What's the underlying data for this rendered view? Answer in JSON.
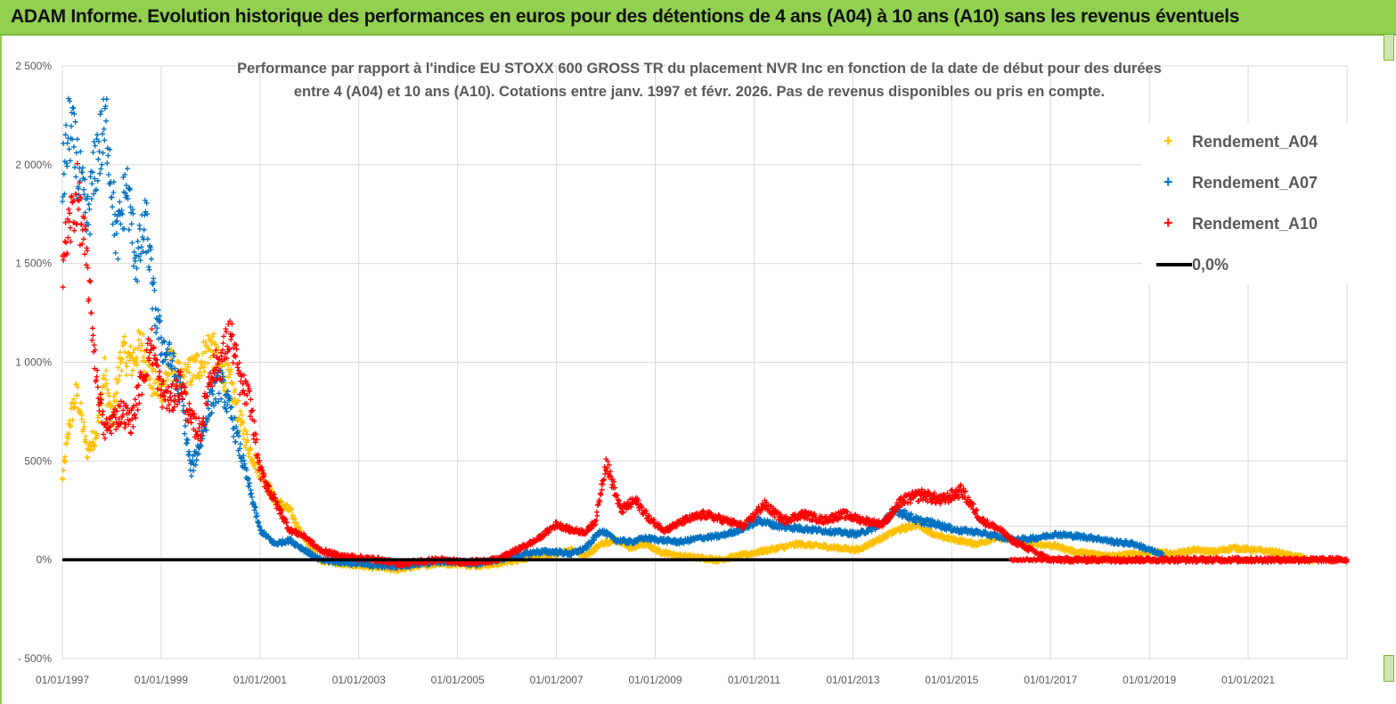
{
  "banner": {
    "title": "ADAM Informe. Evolution historique des performances en euros pour des détentions de 4 ans (A04) à 10 ans (A10) sans les revenus éventuels"
  },
  "chart_data": {
    "type": "scatter",
    "title_line1": "Performance par rapport à l'indice EU STOXX 600 GROSS TR  du placement NVR Inc en fonction de la date de début pour des durées",
    "title_line2": "entre 4 (A04) et 10 ans (A10).  Cotations entre janv. 1997 et févr. 2026.  Pas de revenus disponibles ou pris en compte.",
    "xlabel": "",
    "ylabel": "",
    "x_range": [
      1997.0,
      2023.0
    ],
    "ylim": [
      -500,
      2500
    ],
    "y_ticks": [
      -500,
      0,
      500,
      1000,
      1500,
      2000,
      2500
    ],
    "y_tick_labels": [
      "- 500%",
      "0%",
      "500%",
      "1 000%",
      "1 500%",
      "2 000%",
      "2 500%"
    ],
    "x_ticks": [
      1997,
      1999,
      2001,
      2003,
      2005,
      2007,
      2009,
      2011,
      2013,
      2015,
      2017,
      2019,
      2021
    ],
    "x_tick_labels": [
      "01/01/1997",
      "01/01/1999",
      "01/01/2001",
      "01/01/2003",
      "01/01/2005",
      "01/01/2007",
      "01/01/2009",
      "01/01/2011",
      "01/01/2013",
      "01/01/2015",
      "01/01/2017",
      "01/01/2019",
      "01/01/2021"
    ],
    "legend_position": "top-right",
    "series": [
      {
        "name": "Rendement_A04",
        "color": "#ffc000",
        "end": 2022.3,
        "x": [
          1997.0,
          1997.15,
          1997.3,
          1997.5,
          1997.7,
          1997.85,
          1998.0,
          1998.2,
          1998.4,
          1998.6,
          1998.8,
          1999.0,
          1999.2,
          1999.4,
          1999.6,
          1999.8,
          2000.0,
          2000.2,
          2000.4,
          2000.6,
          2000.8,
          2001.0,
          2001.3,
          2001.6,
          2001.9,
          2002.2,
          2002.6,
          2003.0,
          2003.4,
          2003.8,
          2004.2,
          2004.6,
          2005.0,
          2005.4,
          2005.8,
          2006.2,
          2006.6,
          2007.0,
          2007.3,
          2007.6,
          2007.9,
          2008.2,
          2008.5,
          2008.8,
          2009.1,
          2009.5,
          2009.9,
          2010.3,
          2010.7,
          2011.1,
          2011.5,
          2011.9,
          2012.3,
          2012.7,
          2013.1,
          2013.5,
          2013.9,
          2014.3,
          2014.7,
          2015.1,
          2015.5,
          2015.9,
          2016.3,
          2016.7,
          2017.1,
          2017.5,
          2017.9,
          2018.3,
          2018.7,
          2019.1,
          2019.5,
          2019.9,
          2020.3,
          2020.7,
          2021.1,
          2021.5,
          2021.9,
          2022.1,
          2022.3
        ],
        "y": [
          400,
          700,
          850,
          550,
          650,
          950,
          700,
          1050,
          1000,
          1100,
          900,
          850,
          1000,
          900,
          950,
          1000,
          1100,
          950,
          900,
          700,
          550,
          450,
          300,
          250,
          100,
          0,
          -20,
          -30,
          -40,
          -50,
          -30,
          -20,
          -20,
          -30,
          -20,
          0,
          20,
          30,
          50,
          20,
          80,
          100,
          60,
          80,
          40,
          20,
          10,
          0,
          20,
          40,
          60,
          80,
          70,
          60,
          50,
          100,
          150,
          180,
          120,
          100,
          80,
          110,
          100,
          80,
          70,
          40,
          30,
          20,
          30,
          40,
          30,
          50,
          40,
          60,
          50,
          40,
          20,
          10,
          -10
        ]
      },
      {
        "name": "Rendement_A07",
        "color": "#0070c0",
        "end": 2019.3,
        "x": [
          1997.0,
          1997.15,
          1997.3,
          1997.5,
          1997.7,
          1997.9,
          1998.1,
          1998.3,
          1998.5,
          1998.7,
          1998.85,
          1999.0,
          1999.2,
          1999.4,
          1999.6,
          1999.8,
          2000.0,
          2000.2,
          2000.4,
          2000.6,
          2000.8,
          2001.0,
          2001.3,
          2001.6,
          2001.9,
          2002.2,
          2002.6,
          2003.0,
          2003.4,
          2003.8,
          2004.2,
          2004.6,
          2005.0,
          2005.4,
          2005.8,
          2006.2,
          2006.6,
          2007.0,
          2007.3,
          2007.6,
          2007.9,
          2008.2,
          2008.5,
          2008.8,
          2009.1,
          2009.5,
          2009.9,
          2010.3,
          2010.7,
          2011.1,
          2011.5,
          2011.9,
          2012.3,
          2012.7,
          2013.1,
          2013.5,
          2013.9,
          2014.3,
          2014.7,
          2015.1,
          2015.5,
          2015.9,
          2016.3,
          2016.7,
          2017.1,
          2017.5,
          2017.9,
          2018.3,
          2018.7,
          2019.0,
          2019.3
        ],
        "y": [
          1900,
          2200,
          2000,
          1700,
          2050,
          2200,
          1600,
          1900,
          1500,
          1700,
          1300,
          1100,
          1000,
          850,
          450,
          600,
          800,
          900,
          750,
          550,
          350,
          150,
          80,
          100,
          50,
          0,
          -10,
          -20,
          -30,
          -30,
          -20,
          -10,
          -10,
          -20,
          0,
          20,
          40,
          40,
          30,
          60,
          150,
          100,
          90,
          110,
          100,
          90,
          110,
          120,
          150,
          200,
          170,
          160,
          150,
          140,
          130,
          170,
          250,
          200,
          180,
          150,
          140,
          120,
          100,
          110,
          130,
          120,
          110,
          90,
          80,
          50,
          20
        ]
      },
      {
        "name": "Rendement_A10",
        "color": "#ff0000",
        "end": 2023.0,
        "x": [
          1997.0,
          1997.15,
          1997.3,
          1997.5,
          1997.7,
          1997.85,
          1998.0,
          1998.2,
          1998.4,
          1998.6,
          1998.8,
          1999.0,
          1999.2,
          1999.4,
          1999.6,
          1999.8,
          2000.0,
          2000.2,
          2000.4,
          2000.6,
          2000.8,
          2001.0,
          2001.3,
          2001.6,
          2001.9,
          2002.2,
          2002.6,
          2003.0,
          2003.4,
          2003.8,
          2004.2,
          2004.6,
          2005.0,
          2005.4,
          2005.8,
          2006.2,
          2006.6,
          2007.0,
          2007.3,
          2007.6,
          2007.8,
          2008.0,
          2008.3,
          2008.6,
          2008.9,
          2009.2,
          2009.6,
          2010.0,
          2010.4,
          2010.8,
          2011.2,
          2011.6,
          2012.0,
          2012.4,
          2012.8,
          2013.2,
          2013.6,
          2014.0,
          2014.4,
          2014.8,
          2015.2,
          2015.6,
          2016.0,
          2016.2,
          2017.0,
          2018.0,
          2019.0,
          2020.0,
          2021.0,
          2022.0,
          2023.0
        ],
        "y": [
          1500,
          1700,
          1850,
          1500,
          900,
          650,
          700,
          750,
          700,
          900,
          1100,
          850,
          800,
          900,
          700,
          650,
          950,
          1000,
          1150,
          900,
          800,
          450,
          300,
          150,
          120,
          50,
          20,
          10,
          0,
          -20,
          -10,
          0,
          -10,
          -10,
          0,
          50,
          100,
          180,
          150,
          140,
          200,
          500,
          250,
          300,
          200,
          150,
          200,
          230,
          200,
          170,
          280,
          200,
          230,
          200,
          230,
          200,
          180,
          300,
          330,
          300,
          350,
          200,
          150,
          100,
          0,
          0,
          0,
          0,
          0,
          0,
          0
        ]
      },
      {
        "name": "0,0%",
        "color": "#000000",
        "x": [
          1997.0,
          2023.0
        ],
        "y": [
          0,
          0
        ]
      }
    ]
  }
}
